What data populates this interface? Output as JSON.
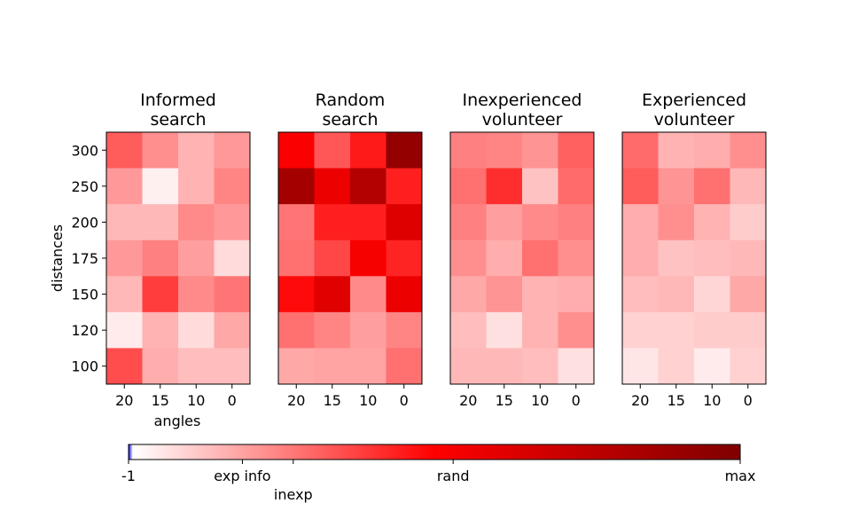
{
  "chart_data": {
    "type": "heatmap",
    "xlabel": "angles",
    "ylabel": "distances",
    "x_categories": [
      "20",
      "15",
      "10",
      "0"
    ],
    "y_categories": [
      "300",
      "250",
      "200",
      "175",
      "150",
      "120",
      "100"
    ],
    "panels": [
      {
        "title_line1": "Informed",
        "title_line2": "search",
        "values": [
          [
            0.32,
            0.22,
            0.15,
            0.2
          ],
          [
            0.2,
            0.03,
            0.15,
            0.24
          ],
          [
            0.14,
            0.14,
            0.23,
            0.2
          ],
          [
            0.2,
            0.25,
            0.19,
            0.07
          ],
          [
            0.14,
            0.38,
            0.23,
            0.27
          ],
          [
            0.04,
            0.15,
            0.07,
            0.17
          ],
          [
            0.35,
            0.16,
            0.13,
            0.13
          ]
        ]
      },
      {
        "title_line1": "Random",
        "title_line2": "search",
        "values": [
          [
            0.52,
            0.33,
            0.45,
            0.92
          ],
          [
            0.86,
            0.57,
            0.8,
            0.44
          ],
          [
            0.27,
            0.44,
            0.44,
            0.63
          ],
          [
            0.28,
            0.36,
            0.53,
            0.43
          ],
          [
            0.48,
            0.62,
            0.23,
            0.57
          ],
          [
            0.28,
            0.24,
            0.19,
            0.24
          ],
          [
            0.17,
            0.18,
            0.18,
            0.28
          ]
        ]
      },
      {
        "title_line1": "Inexperienced",
        "title_line2": "volunteer",
        "values": [
          [
            0.25,
            0.24,
            0.21,
            0.31
          ],
          [
            0.28,
            0.41,
            0.12,
            0.29
          ],
          [
            0.25,
            0.19,
            0.23,
            0.25
          ],
          [
            0.22,
            0.16,
            0.28,
            0.22
          ],
          [
            0.17,
            0.21,
            0.15,
            0.16
          ],
          [
            0.13,
            0.06,
            0.15,
            0.22
          ],
          [
            0.14,
            0.14,
            0.13,
            0.06
          ]
        ]
      },
      {
        "title_line1": "Experienced",
        "title_line2": "volunteer",
        "values": [
          [
            0.29,
            0.15,
            0.16,
            0.22
          ],
          [
            0.32,
            0.21,
            0.28,
            0.14
          ],
          [
            0.16,
            0.22,
            0.15,
            0.1
          ],
          [
            0.16,
            0.12,
            0.13,
            0.14
          ],
          [
            0.13,
            0.14,
            0.08,
            0.17
          ],
          [
            0.09,
            0.09,
            0.1,
            0.1
          ],
          [
            0.05,
            0.09,
            0.04,
            0.09
          ]
        ]
      }
    ],
    "colorbar": {
      "range": [
        -1,
        100
      ],
      "ticks": [
        {
          "value": -1,
          "label": "-1"
        },
        {
          "value": 17.8,
          "label": "exp info"
        },
        {
          "value": 26.2,
          "label": "inexp"
        },
        {
          "value": 52.6,
          "label": "rand"
        },
        {
          "value": 100,
          "label": "max"
        }
      ],
      "colors": {
        "min": "#0000ff",
        "low": "#ffffff",
        "mid": "#ff0000",
        "high": "#800000"
      }
    }
  }
}
